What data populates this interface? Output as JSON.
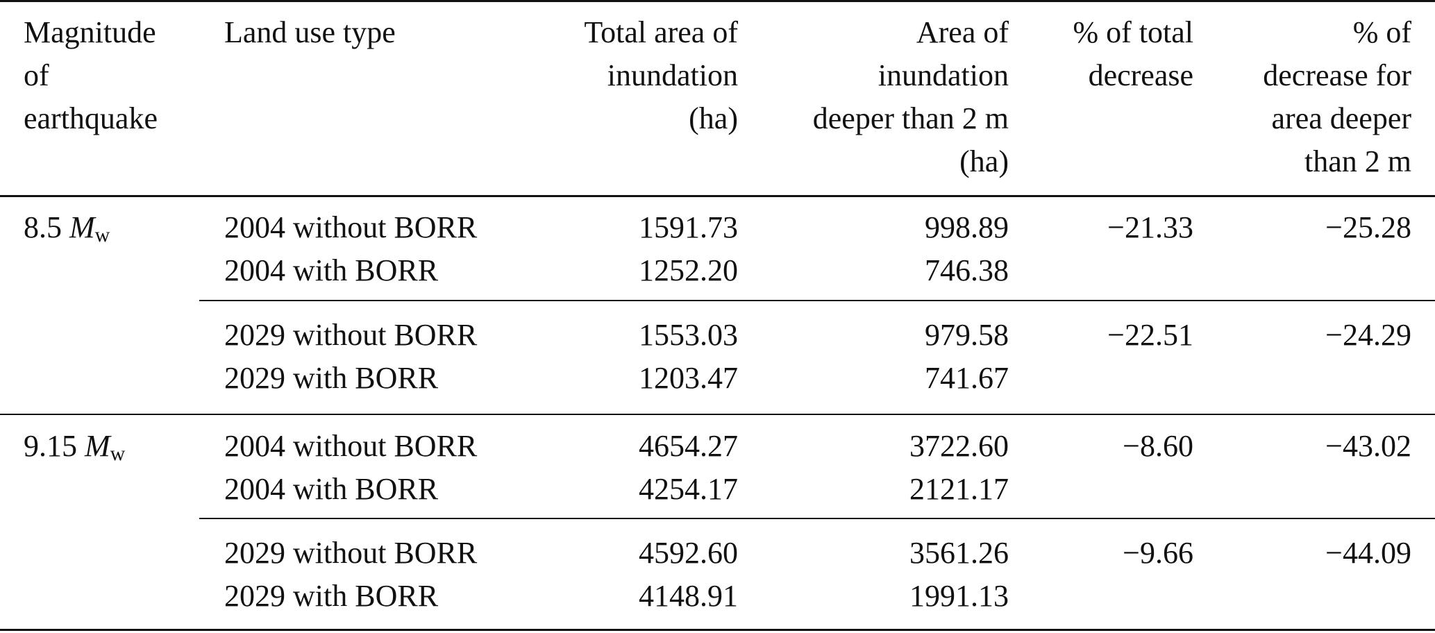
{
  "header": {
    "col1": [
      "Magnitude",
      "of",
      "earthquake"
    ],
    "col2": [
      "Land use type"
    ],
    "col3": [
      "Total area of",
      "inundation",
      "(ha)"
    ],
    "col4": [
      "Area of",
      "inundation",
      "deeper than 2 m",
      "(ha)"
    ],
    "col5": [
      "% of total",
      "decrease"
    ],
    "col6": [
      "% of",
      "decrease for",
      "area deeper",
      "than 2 m"
    ]
  },
  "groups": [
    {
      "magnitude_value": "8.5",
      "magnitude_unit": "M",
      "magnitude_sub": "w",
      "blocks": [
        {
          "rows": [
            {
              "land_use": "2004 without BORR",
              "total_area": "1591.73",
              "deep_area": "998.89"
            },
            {
              "land_use": "2004 with BORR",
              "total_area": "1252.20",
              "deep_area": "746.38"
            }
          ],
          "pct_total_decrease": "−21.33",
          "pct_deep_decrease": "−25.28"
        },
        {
          "rows": [
            {
              "land_use": "2029 without BORR",
              "total_area": "1553.03",
              "deep_area": "979.58"
            },
            {
              "land_use": "2029 with BORR",
              "total_area": "1203.47",
              "deep_area": "741.67"
            }
          ],
          "pct_total_decrease": "−22.51",
          "pct_deep_decrease": "−24.29"
        }
      ]
    },
    {
      "magnitude_value": "9.15",
      "magnitude_unit": "M",
      "magnitude_sub": "w",
      "blocks": [
        {
          "rows": [
            {
              "land_use": "2004 without BORR",
              "total_area": "4654.27",
              "deep_area": "3722.60"
            },
            {
              "land_use": "2004 with BORR",
              "total_area": "4254.17",
              "deep_area": "2121.17"
            }
          ],
          "pct_total_decrease": "−8.60",
          "pct_deep_decrease": "−43.02"
        },
        {
          "rows": [
            {
              "land_use": "2029 without BORR",
              "total_area": "4592.60",
              "deep_area": "3561.26"
            },
            {
              "land_use": "2029 with BORR",
              "total_area": "4148.91",
              "deep_area": "1991.13"
            }
          ],
          "pct_total_decrease": "−9.66",
          "pct_deep_decrease": "−44.09"
        }
      ]
    }
  ]
}
